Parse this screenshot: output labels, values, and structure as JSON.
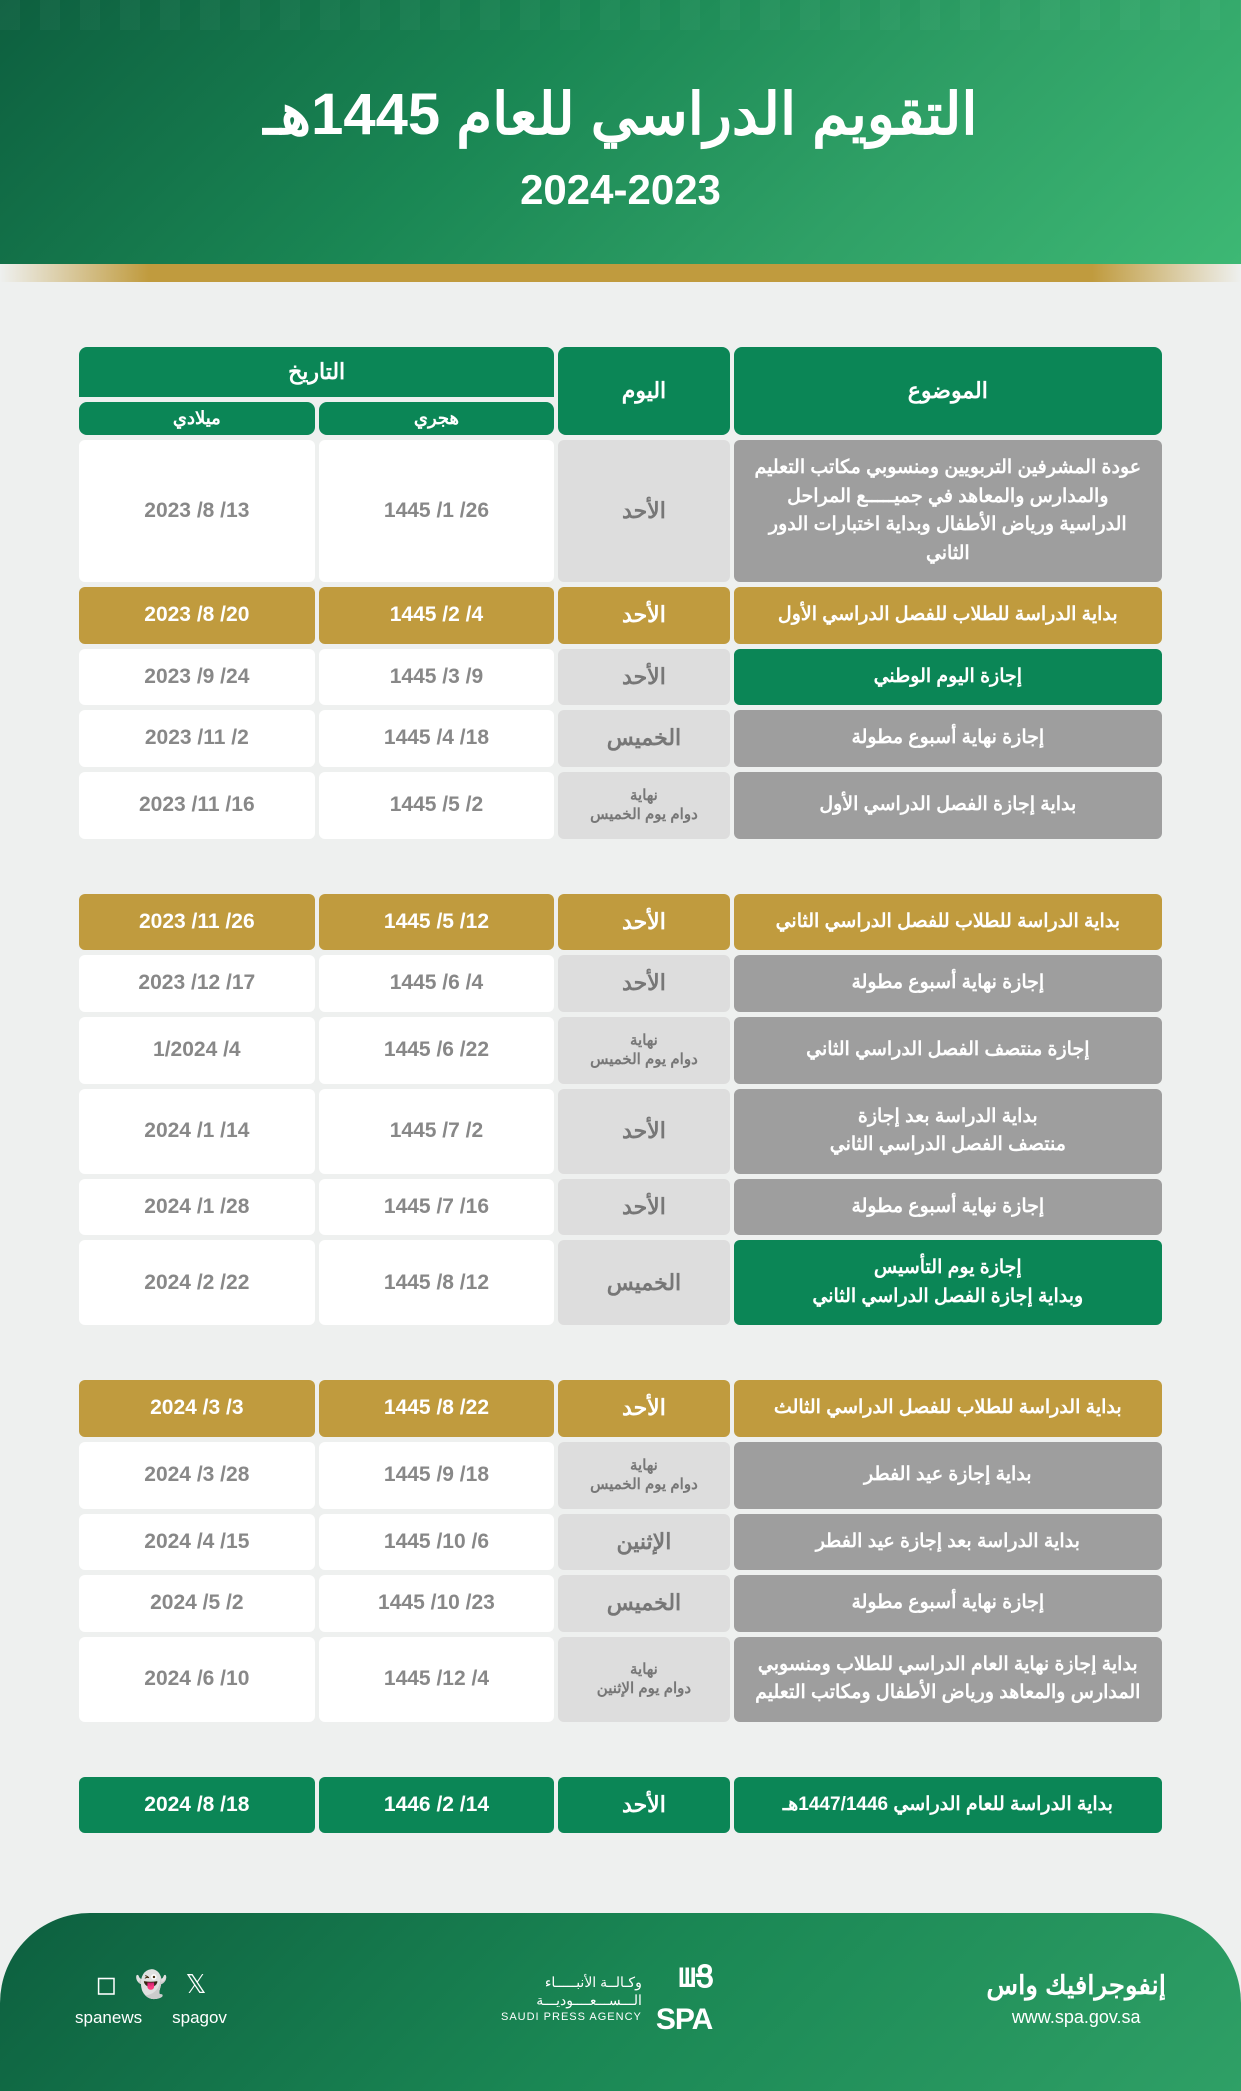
{
  "header": {
    "title_main": "التقويم الدراسي للعام 1445هـ",
    "title_sub": "2024-2023"
  },
  "columns": {
    "subject": "الموضوع",
    "day": "اليوم",
    "date": "التاريخ",
    "hijri": "هجري",
    "gregorian": "ميلادي"
  },
  "groups": [
    {
      "show_header": true,
      "rows": [
        {
          "style": "",
          "subject": "عودة المشرفين التربويين ومنسوبي مكاتب التعليم والمدارس والمعاهد في جميـــــع المراحل الدراسية ورياض الأطفال وبداية اختبارات الدور الثاني",
          "day": "الأحد",
          "hijri": "26/ 1/ 1445",
          "gregorian": "13/ 8/ 2023",
          "day_small": false
        },
        {
          "style": "gold",
          "subject": "بداية الدراسة للطلاب للفصل الدراسي الأول",
          "day": "الأحد",
          "hijri": "4/ 2/ 1445",
          "gregorian": "20/ 8/ 2023",
          "day_small": false
        },
        {
          "style": "green",
          "subject": "إجازة اليوم الوطني",
          "day": "الأحد",
          "hijri": "9/ 3/ 1445",
          "gregorian": "24/ 9/ 2023",
          "day_small": false
        },
        {
          "style": "",
          "subject": "إجازة نهاية أسبوع مطولة",
          "day": "الخميس",
          "hijri": "18/ 4/ 1445",
          "gregorian": "2/ 11/ 2023",
          "day_small": false
        },
        {
          "style": "",
          "subject": "بداية إجازة الفصل الدراسي الأول",
          "day": "نهاية\nدوام يوم الخميس",
          "hijri": "2/ 5/ 1445",
          "gregorian": "16/ 11/ 2023",
          "day_small": true
        }
      ]
    },
    {
      "show_header": false,
      "rows": [
        {
          "style": "gold",
          "subject": "بداية الدراسة للطلاب للفصل الدراسي الثاني",
          "day": "الأحد",
          "hijri": "12/ 5/ 1445",
          "gregorian": "26/ 11/ 2023",
          "day_small": false
        },
        {
          "style": "",
          "subject": "إجازة نهاية أسبوع مطولة",
          "day": "الأحد",
          "hijri": "4/ 6/ 1445",
          "gregorian": "17/ 12/ 2023",
          "day_small": false
        },
        {
          "style": "",
          "subject": "إجازة منتصف الفصل الدراسي الثاني",
          "day": "نهاية\nدوام يوم الخميس",
          "hijri": "22/ 6/ 1445",
          "gregorian": "4/ 1/2024",
          "day_small": true
        },
        {
          "style": "",
          "subject": "بداية الدراسة بعد إجازة\nمنتصف الفصل الدراسي الثاني",
          "day": "الأحد",
          "hijri": "2/ 7/ 1445",
          "gregorian": "14/ 1/ 2024",
          "day_small": false
        },
        {
          "style": "",
          "subject": "إجازة نهاية أسبوع مطولة",
          "day": "الأحد",
          "hijri": "16/ 7/ 1445",
          "gregorian": "28/ 1/ 2024",
          "day_small": false
        },
        {
          "style": "green",
          "subject": "إجازة يوم التأسيس\nوبداية إجازة الفصل الدراسي الثاني",
          "day": "الخميس",
          "hijri": "12/ 8/ 1445",
          "gregorian": "22/ 2/ 2024",
          "day_small": false
        }
      ]
    },
    {
      "show_header": false,
      "rows": [
        {
          "style": "gold",
          "subject": "بداية الدراسة للطلاب للفصل الدراسي الثالث",
          "day": "الأحد",
          "hijri": "22/ 8/ 1445",
          "gregorian": "3/ 3/ 2024",
          "day_small": false
        },
        {
          "style": "",
          "subject": "بداية إجازة عيد الفطر",
          "day": "نهاية\nدوام يوم الخميس",
          "hijri": "18/ 9/ 1445",
          "gregorian": "28/ 3/ 2024",
          "day_small": true
        },
        {
          "style": "",
          "subject": "بداية الدراسة بعد إجازة عيد الفطر",
          "day": "الإثنين",
          "hijri": "6/ 10/ 1445",
          "gregorian": "15/ 4/ 2024",
          "day_small": false
        },
        {
          "style": "",
          "subject": "إجازة نهاية أسبوع مطولة",
          "day": "الخميس",
          "hijri": "23/ 10/ 1445",
          "gregorian": "2/ 5/ 2024",
          "day_small": false
        },
        {
          "style": "",
          "subject": "بداية إجازة نهاية العام الدراسي للطلاب ومنسوبي المدارس والمعاهد ورياض الأطفال ومكاتب التعليم",
          "day": "نهاية\nدوام يوم الإثنين",
          "hijri": "4/ 12/ 1445",
          "gregorian": "10/ 6/ 2024",
          "day_small": true
        }
      ]
    },
    {
      "show_header": false,
      "rows": [
        {
          "style": "green-full",
          "subject": "بداية الدراسة للعام الدراسي 1447/1446هـ",
          "day": "الأحد",
          "hijri": "14/ 2/ 1446",
          "gregorian": "18/ 8/ 2024",
          "day_small": false
        }
      ]
    }
  ],
  "footer": {
    "brand_top": "إنفوجرافيك واس",
    "brand_sub": "www.spa.gov.sa",
    "logo_box": "SPA",
    "logo_ar1": "وكـالــة الأنبـــــاء",
    "logo_ar2": "الـــســـعــــوديـــة",
    "logo_en": "SAUDI PRESS AGENCY",
    "handle1": "spagov",
    "handle2": "spanews"
  },
  "colors": {
    "green": "#0b8656",
    "gold": "#c09b3e",
    "gray_subject": "#9e9e9e",
    "gray_day": "#ddd"
  }
}
